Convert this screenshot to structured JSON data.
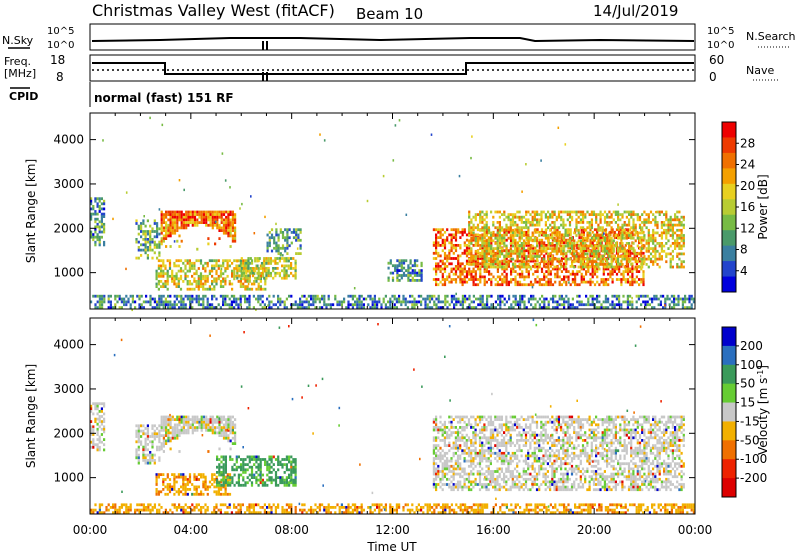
{
  "header": {
    "title": "Christmas Valley West (fitACF)",
    "beam": "Beam 10",
    "date": "14/Jul/2019"
  },
  "status_panel": {
    "nsky_label": "N.Sky",
    "noise_tick_high": "10^5",
    "noise_tick_low": "10^0",
    "nsearch_label": "N.Search",
    "freq_label": "Freq.",
    "freq_unit": "[MHz]",
    "freq_tick_high": "18",
    "freq_tick_low": "8",
    "nave_label": "Nave",
    "nave_tick_high": "60",
    "nave_tick_low": "0",
    "cpid_label": "CPID",
    "cpid_value": "normal (fast) 151 RF"
  },
  "chart_data": [
    {
      "type": "heatmap",
      "panel": "power",
      "ylabel": "Slant Range [km]",
      "xlabel": "",
      "x_ticks": [
        "00:00",
        "04:00",
        "08:00",
        "12:00",
        "16:00",
        "20:00",
        "00:00"
      ],
      "xlim_hours": [
        0,
        24
      ],
      "y_ticks": [
        "4000",
        "3000",
        "2000",
        "1000"
      ],
      "y_tick_values": [
        4000,
        3000,
        2000,
        1000
      ],
      "ylim": [
        180,
        4600
      ],
      "colorbar": {
        "label": "Power [dB]",
        "ticks": [
          "28",
          "24",
          "20",
          "16",
          "12",
          "8",
          "4"
        ],
        "tick_values": [
          28,
          24,
          20,
          16,
          12,
          8,
          4
        ],
        "range": [
          0,
          32
        ],
        "colors": [
          "#0000dd",
          "#2244cc",
          "#3a7fa0",
          "#4a9a6a",
          "#77bb44",
          "#b8cc33",
          "#e8d020",
          "#f4a000",
          "#f07000",
          "#ee3a00",
          "#ee0000"
        ]
      },
      "regions": [
        {
          "t0": 2.8,
          "t1": 5.8,
          "r0": 1500,
          "r1": 2400,
          "level": 26,
          "shape": "bowl"
        },
        {
          "t0": 2.6,
          "t1": 7.0,
          "r0": 600,
          "r1": 1300,
          "level": 18
        },
        {
          "t0": 5.8,
          "t1": 8.2,
          "r0": 850,
          "r1": 1350,
          "level": 16
        },
        {
          "t0": 0.0,
          "t1": 0.6,
          "r0": 1600,
          "r1": 2700,
          "level": 9
        },
        {
          "t0": 1.8,
          "t1": 2.8,
          "r0": 1300,
          "r1": 2200,
          "level": 11
        },
        {
          "t0": 7.0,
          "t1": 8.4,
          "r0": 1400,
          "r1": 2000,
          "level": 10
        },
        {
          "t0": 11.8,
          "t1": 13.2,
          "r0": 800,
          "r1": 1300,
          "level": 9
        },
        {
          "t0": 13.6,
          "t1": 22.0,
          "r0": 700,
          "r1": 2000,
          "level": 25
        },
        {
          "t0": 15.0,
          "t1": 23.6,
          "r0": 1100,
          "r1": 2400,
          "level": 19
        },
        {
          "t0": 0.0,
          "t1": 24.0,
          "r0": 180,
          "r1": 500,
          "level": 8
        }
      ]
    },
    {
      "type": "heatmap",
      "panel": "velocity",
      "ylabel": "Slant Range [km]",
      "xlabel": "Time UT",
      "x_ticks": [
        "00:00",
        "04:00",
        "08:00",
        "12:00",
        "16:00",
        "20:00",
        "00:00"
      ],
      "xlim_hours": [
        0,
        24
      ],
      "y_ticks": [
        "4000",
        "3000",
        "2000",
        "1000"
      ],
      "y_tick_values": [
        4000,
        3000,
        2000,
        1000
      ],
      "ylim": [
        180,
        4600
      ],
      "colorbar": {
        "label": "Velocity [m s^-1]",
        "ticks": [
          "200",
          "100",
          "50",
          "15",
          "-15",
          "-50",
          "-100",
          "-200"
        ],
        "tick_values": [
          200,
          100,
          50,
          15,
          -15,
          -50,
          -100,
          -200
        ],
        "colors": [
          "#0000cc",
          "#2a6fbf",
          "#3a9a5a",
          "#66cc33",
          "#c8c8c8",
          "#f2b000",
          "#f07000",
          "#ee2200",
          "#dd0000"
        ]
      },
      "regions": [
        {
          "t0": 2.8,
          "t1": 5.8,
          "r0": 1500,
          "r1": 2400,
          "level": 0,
          "shape": "bowl"
        },
        {
          "t0": 2.6,
          "t1": 5.6,
          "r0": 600,
          "r1": 1100,
          "level": -40
        },
        {
          "t0": 5.0,
          "t1": 8.2,
          "r0": 800,
          "r1": 1500,
          "level": 40
        },
        {
          "t0": 0.0,
          "t1": 0.6,
          "r0": 1600,
          "r1": 2700,
          "level": 0
        },
        {
          "t0": 1.8,
          "t1": 2.8,
          "r0": 1300,
          "r1": 2200,
          "level": 0
        },
        {
          "t0": 13.6,
          "t1": 23.6,
          "r0": 700,
          "r1": 2400,
          "level": 0
        },
        {
          "t0": 0.0,
          "t1": 24.0,
          "r0": 180,
          "r1": 420,
          "level": -40
        }
      ]
    }
  ]
}
